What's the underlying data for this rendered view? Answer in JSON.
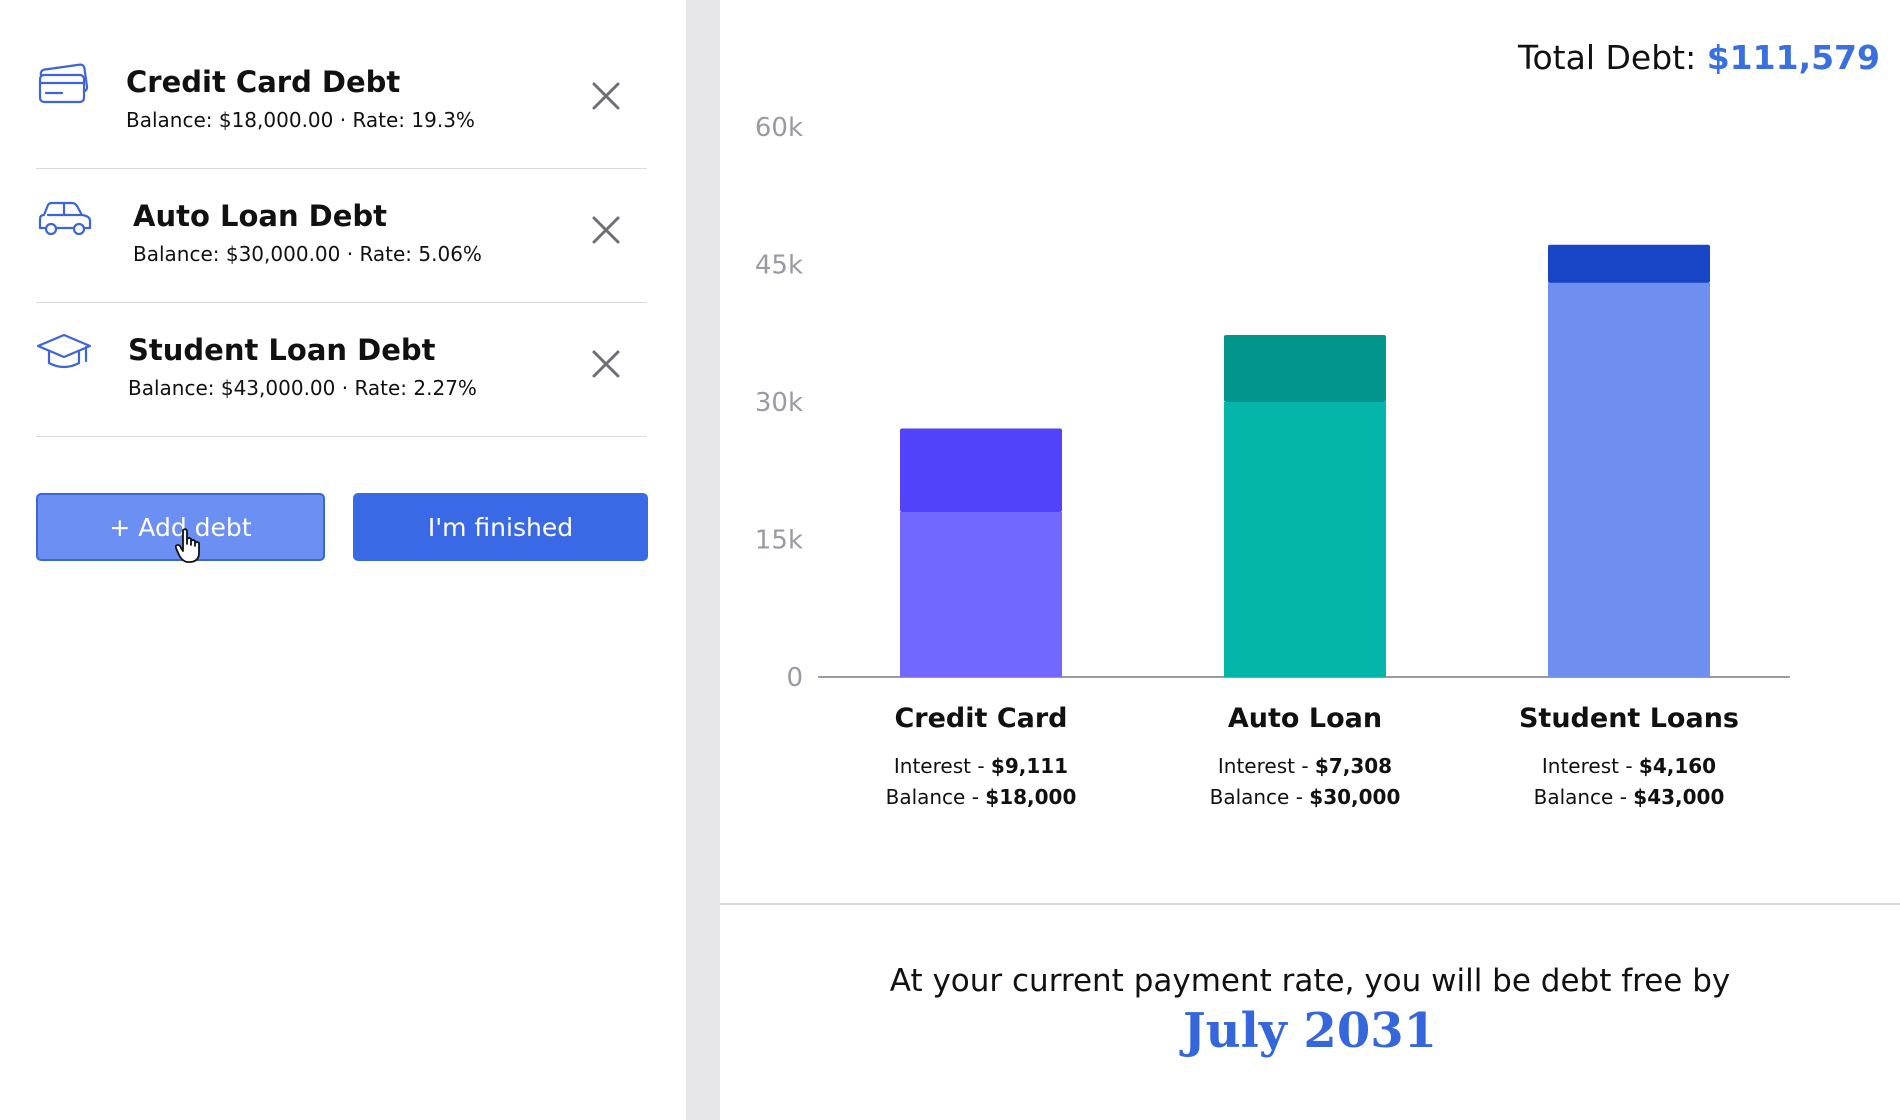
{
  "debts": [
    {
      "icon": "credit-card-icon",
      "title": "Credit Card Debt",
      "meta": "Balance: $18,000.00 · Rate: 19.3%"
    },
    {
      "icon": "car-icon",
      "title": "Auto Loan Debt",
      "meta": "Balance: $30,000.00 · Rate: 5.06%"
    },
    {
      "icon": "graduation-cap-icon",
      "title": "Student Loan Debt",
      "meta": "Balance: $43,000.00 · Rate: 2.27%"
    }
  ],
  "buttons": {
    "add_debt": "+ Add debt",
    "finished": "I'm finished"
  },
  "summary": {
    "total_label": "Total Debt:",
    "total_value": "$111,579"
  },
  "footer": {
    "line": "At your current payment rate, you will be debt free by",
    "date": "July 2031"
  },
  "colors": {
    "accent": "#3a69e6",
    "total_value": "#3a6fe0"
  },
  "chart_data": {
    "type": "bar",
    "stacked": true,
    "categories": [
      "Credit Card",
      "Auto Loan",
      "Student Loans"
    ],
    "ylim": [
      0,
      60000
    ],
    "yticks": [
      0,
      15000,
      30000,
      45000,
      60000
    ],
    "ytick_labels": [
      "0",
      "15k",
      "30k",
      "45k",
      "60k"
    ],
    "grid": false,
    "series": [
      {
        "name": "Balance",
        "values": [
          18000,
          30000,
          43000
        ]
      },
      {
        "name": "Interest",
        "values": [
          9111,
          7308,
          4160
        ]
      }
    ],
    "colors": {
      "Balance": [
        "#7169ff",
        "#04b5aa",
        "#6f8ff0"
      ],
      "Interest": [
        "#5143fb",
        "#02958b",
        "#1745c6"
      ]
    },
    "data_labels": [
      {
        "interest_label": "Interest - ",
        "interest": "$9,111",
        "balance_label": "Balance - ",
        "balance": "$18,000"
      },
      {
        "interest_label": "Interest - ",
        "interest": "$7,308",
        "balance_label": "Balance - ",
        "balance": "$30,000"
      },
      {
        "interest_label": "Interest - ",
        "interest": "$4,160",
        "balance_label": "Balance - ",
        "balance": "$43,000"
      }
    ]
  }
}
